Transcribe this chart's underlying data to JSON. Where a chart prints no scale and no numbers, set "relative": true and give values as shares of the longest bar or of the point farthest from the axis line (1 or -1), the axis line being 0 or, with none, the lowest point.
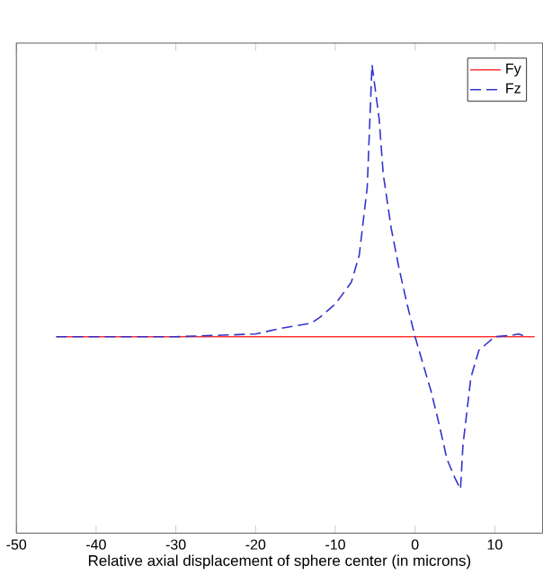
{
  "chart_data": {
    "type": "line",
    "relative": true,
    "xlabel": "Relative axial displacement of sphere center (in microns)",
    "xlim": [
      -50,
      16
    ],
    "xticks": [
      -50,
      -40,
      -30,
      -20,
      -10,
      0,
      10
    ],
    "legend": "top right",
    "tick_labels": "x",
    "series": [
      {
        "name": "Fy",
        "color": "#ff3333",
        "line_style": "solid",
        "x": [
          -45,
          15
        ],
        "values": [
          0,
          0
        ]
      },
      {
        "name": "Fz",
        "color": "#3333cc",
        "line_style": "dashed",
        "x": [
          -45,
          -30,
          -25,
          -20,
          -17,
          -15,
          -13,
          -12,
          -10,
          -8,
          -7,
          -6,
          -5.4,
          -4.5,
          -4,
          -3,
          -2,
          -1,
          0,
          1,
          2,
          3,
          4,
          5,
          5.7,
          6,
          7,
          8,
          10,
          12,
          13,
          14
        ],
        "values": [
          0,
          0,
          0.005,
          0.01,
          0.03,
          0.04,
          0.05,
          0.07,
          0.12,
          0.2,
          0.3,
          0.55,
          1.0,
          0.8,
          0.6,
          0.4,
          0.25,
          0.12,
          0,
          -0.1,
          -0.2,
          -0.32,
          -0.45,
          -0.52,
          -0.56,
          -0.4,
          -0.15,
          -0.05,
          0,
          0.005,
          0.01,
          0
        ]
      }
    ]
  }
}
